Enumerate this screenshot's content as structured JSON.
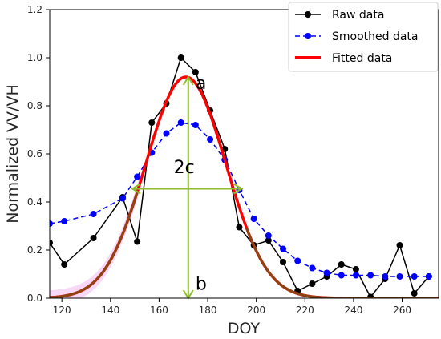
{
  "chart_data": {
    "type": "line",
    "xlabel": "DOY",
    "ylabel": "Normalized VV/VH",
    "xlim": [
      115,
      275
    ],
    "ylim": [
      0,
      1.2
    ],
    "x_ticks": [
      120,
      140,
      160,
      180,
      200,
      220,
      240,
      260
    ],
    "y_ticks": [
      0.0,
      0.2,
      0.4,
      0.6,
      0.8,
      1.0,
      1.2
    ],
    "y_tick_labels": [
      "0.0",
      "0.2",
      "0.4",
      "0.6",
      "0.8",
      "1.0",
      "1.2"
    ],
    "legend_position": "top-right",
    "series": [
      {
        "name": "Raw data",
        "color": "#000000",
        "style": "solid-with-dots",
        "x": [
          115,
          121,
          133,
          145,
          151,
          157,
          163,
          169,
          175,
          181,
          187,
          193,
          199,
          205,
          211,
          217,
          223,
          229,
          235,
          241,
          247,
          253,
          259,
          265,
          271
        ],
        "y": [
          0.23,
          0.14,
          0.25,
          0.42,
          0.235,
          0.73,
          0.81,
          1.0,
          0.94,
          0.78,
          0.62,
          0.295,
          0.22,
          0.24,
          0.15,
          0.03,
          0.06,
          0.09,
          0.14,
          0.12,
          0.005,
          0.08,
          0.22,
          0.02,
          0.09
        ]
      },
      {
        "name": "Smoothed data",
        "color": "#0000ff",
        "style": "dashed-with-dots",
        "x": [
          115,
          121,
          133,
          145,
          151,
          157,
          163,
          169,
          175,
          181,
          187,
          193,
          199,
          205,
          211,
          217,
          223,
          229,
          235,
          241,
          247,
          253,
          259,
          265,
          271
        ],
        "y": [
          0.31,
          0.32,
          0.35,
          0.415,
          0.505,
          0.605,
          0.685,
          0.73,
          0.72,
          0.66,
          0.575,
          0.45,
          0.33,
          0.26,
          0.205,
          0.155,
          0.125,
          0.105,
          0.095,
          0.095,
          0.095,
          0.09,
          0.09,
          0.09,
          0.09
        ]
      },
      {
        "name": "Fitted data",
        "color": "#ff0000",
        "style": "thick-solid",
        "function": "gaussian",
        "peak": 0.92,
        "center": 171,
        "sigma": 16.5,
        "baseline": 0
      }
    ],
    "annotations": [
      {
        "text": "a",
        "x": 175,
        "y": 0.87
      },
      {
        "text": "2c",
        "x": 166,
        "y": 0.52
      },
      {
        "text": "b",
        "x": 175,
        "y": 0.035
      }
    ],
    "guides": {
      "color": "#8fbc2f",
      "vertical_x": 172,
      "vertical_y": [
        0.92,
        0.0
      ],
      "horizontal_y": 0.455,
      "horizontal_x": [
        149,
        194
      ]
    },
    "left_tail_shade_color": "#f3c8f3",
    "left_tail_fit_color": "#8b4513",
    "right_tail_fit_color": "#8b4513",
    "grid": false
  }
}
